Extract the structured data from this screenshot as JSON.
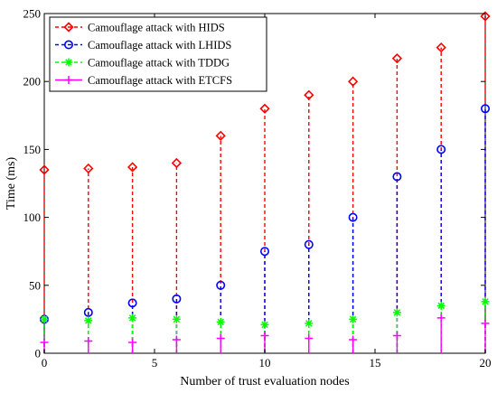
{
  "chart_data": {
    "type": "stem",
    "xlabel": "Number of trust evaluation nodes",
    "ylabel": "Time (ms)",
    "xlim": [
      0,
      20
    ],
    "ylim": [
      0,
      250
    ],
    "xticks": [
      "0",
      "5",
      "10",
      "15",
      "20"
    ],
    "yticks": [
      "0",
      "50",
      "100",
      "150",
      "200",
      "250"
    ],
    "grid": false,
    "legend_position": "top-left",
    "x": [
      0,
      2,
      4,
      6,
      8,
      10,
      12,
      14,
      16,
      18,
      20
    ],
    "series": [
      {
        "name": "Camouflage attack with HIDS",
        "color": "#ff0000",
        "marker": "diamond",
        "values": [
          135,
          136,
          137,
          140,
          160,
          180,
          190,
          200,
          217,
          225,
          248
        ]
      },
      {
        "name": "Camouflage attack with LHIDS",
        "color": "#0000ff",
        "marker": "circle",
        "values": [
          25,
          30,
          37,
          40,
          50,
          75,
          80,
          100,
          130,
          150,
          180
        ]
      },
      {
        "name": "Camouflage attack with TDDG",
        "color": "#00ff00",
        "marker": "asterisk",
        "values": [
          25,
          24,
          26,
          25,
          23,
          21,
          22,
          25,
          30,
          35,
          38
        ]
      },
      {
        "name": "Camouflage attack with ETCFS",
        "color": "#ff00ff",
        "marker": "plus",
        "values": [
          8,
          9,
          8,
          10,
          11,
          13,
          11,
          10,
          13,
          26,
          22
        ]
      }
    ]
  }
}
